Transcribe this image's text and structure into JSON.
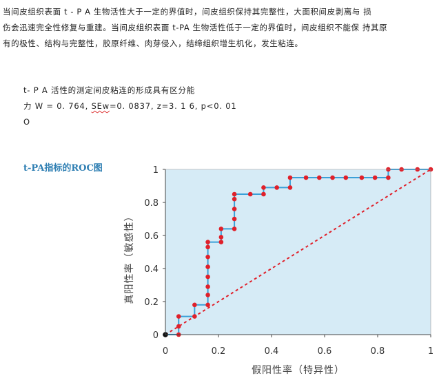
{
  "paragraph": {
    "line1": "当间皮组织表面 t - P A 生物活性大于一定的界值时，间皮组织保持其完整性，大面积间皮剥离与 损",
    "line2": "伤会迅速完全性修复与重建。当间皮组织表面 t-PA 生物活性低于一定的界值时，间皮组织不能保 持其原",
    "line3": "有的极性、结构与完整性，胶原纤维、肉芽侵入，结缔组织增生机化，发生粘连。"
  },
  "stats": {
    "line1": "t- P A 活性的测定间皮粘连的形成具有区分能",
    "line2_prefix": "力 W = 0. 764, ",
    "line2_squiggle": "SEw",
    "line2_suffix": "=0. 0837, z=3. 1  6, p<0. 01",
    "line3": "O"
  },
  "chart_title": "t-PA指标的ROC图",
  "chart_data": {
    "type": "line",
    "title": "t-PA指标的ROC图",
    "xlabel": "假阳性率（特异性）",
    "ylabel": "真阳性率（敏感性）",
    "xlim": [
      0,
      1
    ],
    "ylim": [
      0,
      1
    ],
    "xticks": [
      "0",
      "0.2",
      "0.4",
      "0.6",
      "0.8",
      "1"
    ],
    "yticks": [
      "0",
      "0.2",
      "0.4",
      "0.6",
      "0.8",
      "1"
    ],
    "background_color": "#d6ebf6",
    "curve_color": "#3aa0d8",
    "point_color": "#e0202a",
    "reference_line_color": "#e0202a",
    "grid": false,
    "series": [
      {
        "points": [
          [
            0,
            0
          ],
          [
            0.05,
            0
          ],
          [
            0.05,
            0.05
          ],
          [
            0.05,
            0.11
          ],
          [
            0.11,
            0.11
          ],
          [
            0.11,
            0.18
          ],
          [
            0.16,
            0.18
          ],
          [
            0.16,
            0.24
          ],
          [
            0.16,
            0.29
          ],
          [
            0.16,
            0.35
          ],
          [
            0.16,
            0.41
          ],
          [
            0.16,
            0.47
          ],
          [
            0.16,
            0.53
          ],
          [
            0.16,
            0.56
          ],
          [
            0.21,
            0.56
          ],
          [
            0.21,
            0.59
          ],
          [
            0.21,
            0.64
          ],
          [
            0.26,
            0.64
          ],
          [
            0.26,
            0.7
          ],
          [
            0.26,
            0.76
          ],
          [
            0.26,
            0.82
          ],
          [
            0.26,
            0.85
          ],
          [
            0.32,
            0.85
          ],
          [
            0.37,
            0.85
          ],
          [
            0.37,
            0.89
          ],
          [
            0.42,
            0.89
          ],
          [
            0.47,
            0.89
          ],
          [
            0.47,
            0.95
          ],
          [
            0.53,
            0.95
          ],
          [
            0.58,
            0.95
          ],
          [
            0.63,
            0.95
          ],
          [
            0.68,
            0.95
          ],
          [
            0.74,
            0.95
          ],
          [
            0.79,
            0.95
          ],
          [
            0.84,
            0.95
          ],
          [
            0.84,
            1.0
          ],
          [
            0.89,
            1.0
          ],
          [
            0.95,
            1.0
          ],
          [
            1.0,
            1.0
          ]
        ]
      }
    ],
    "reference_line": [
      [
        0,
        0
      ],
      [
        1,
        1
      ]
    ]
  }
}
